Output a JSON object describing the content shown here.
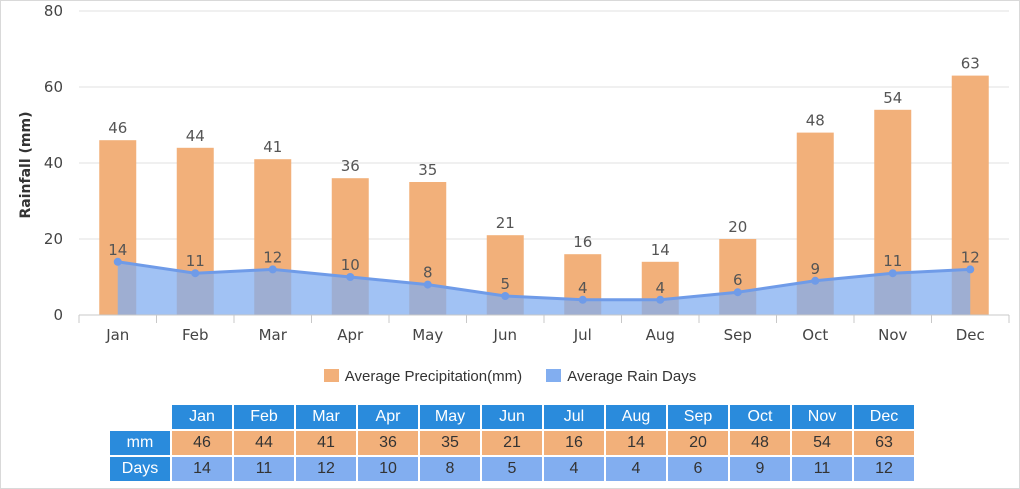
{
  "chart_data": {
    "type": "bar",
    "categories": [
      "Jan",
      "Feb",
      "Mar",
      "Apr",
      "May",
      "Jun",
      "Jul",
      "Aug",
      "Sep",
      "Oct",
      "Nov",
      "Dec"
    ],
    "series": [
      {
        "name": "Average Precipitation(mm)",
        "type": "bar",
        "color": "#f2b07a",
        "values": [
          46,
          44,
          41,
          36,
          35,
          21,
          16,
          14,
          20,
          48,
          54,
          63
        ]
      },
      {
        "name": "Average Rain Days",
        "type": "area",
        "color": "#82aef0",
        "values": [
          14,
          11,
          12,
          10,
          8,
          5,
          4,
          4,
          6,
          9,
          11,
          12
        ]
      }
    ],
    "ylabel": "Rainfall (mm)",
    "ylim": [
      0,
      80
    ],
    "yticks": [
      0,
      20,
      40,
      60,
      80
    ],
    "grid": true,
    "legend_position": "bottom"
  },
  "table": {
    "row_labels": [
      "mm",
      "Days"
    ]
  },
  "colors": {
    "bar": "#f2b07a",
    "area_fill": "#82aef0",
    "line": "#6f9be8",
    "table_header": "#2a8bdc"
  }
}
